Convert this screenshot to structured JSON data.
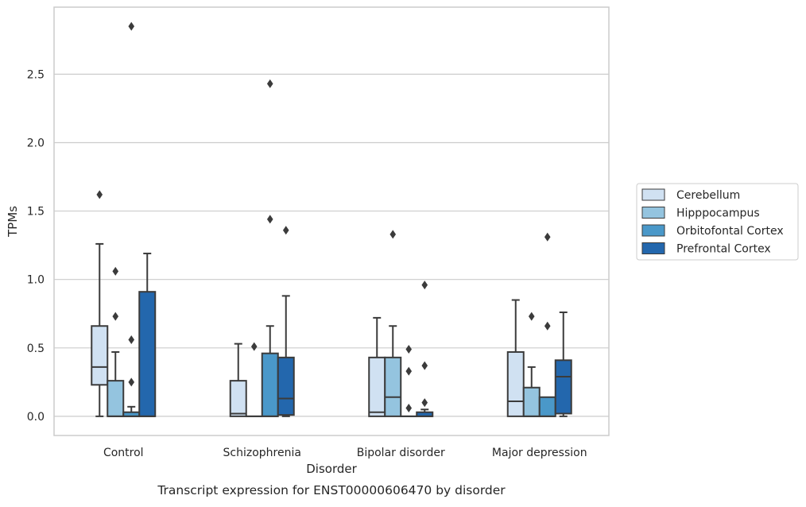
{
  "chart_data": {
    "type": "box",
    "title": "Transcript expression for ENST00000606470 by disorder",
    "xlabel": "Disorder",
    "ylabel": "TPMs",
    "ylim": [
      -0.14,
      2.99
    ],
    "yticks": [
      0.0,
      0.5,
      1.0,
      1.5,
      2.0,
      2.5
    ],
    "ytick_labels": [
      "0.0",
      "0.5",
      "1.0",
      "1.5",
      "2.0",
      "2.5"
    ],
    "categories": [
      "Control",
      "Schizophrenia",
      "Bipolar disorder",
      "Major depression"
    ],
    "grid": "y",
    "legend_position": "right",
    "series": [
      {
        "name": "Cerebellum",
        "color": "#d0e1f2",
        "boxes": [
          {
            "q1": 0.23,
            "median": 0.36,
            "q3": 0.66,
            "whisker_low": 0.0,
            "whisker_high": 1.26,
            "outliers": [
              1.62
            ]
          },
          {
            "q1": 0.0,
            "median": 0.02,
            "q3": 0.26,
            "whisker_low": 0.0,
            "whisker_high": 0.53,
            "outliers": []
          },
          {
            "q1": 0.0,
            "median": 0.03,
            "q3": 0.43,
            "whisker_low": 0.0,
            "whisker_high": 0.72,
            "outliers": []
          },
          {
            "q1": 0.0,
            "median": 0.11,
            "q3": 0.47,
            "whisker_low": 0.0,
            "whisker_high": 0.85,
            "outliers": []
          }
        ]
      },
      {
        "name": "Hipppocampus",
        "color": "#94c4df",
        "boxes": [
          {
            "q1": 0.0,
            "median": 0.0,
            "q3": 0.26,
            "whisker_low": 0.0,
            "whisker_high": 0.47,
            "outliers": [
              0.73,
              1.06
            ]
          },
          {
            "q1": 0.0,
            "median": 0.0,
            "q3": 0.0,
            "whisker_low": 0.0,
            "whisker_high": 0.0,
            "outliers": [
              0.51
            ]
          },
          {
            "q1": 0.0,
            "median": 0.14,
            "q3": 0.43,
            "whisker_low": 0.0,
            "whisker_high": 0.66,
            "outliers": [
              1.33
            ]
          },
          {
            "q1": 0.0,
            "median": 0.0,
            "q3": 0.21,
            "whisker_low": 0.0,
            "whisker_high": 0.36,
            "outliers": [
              0.73
            ]
          }
        ]
      },
      {
        "name": "Orbitofontal Cortex",
        "color": "#4a98c9",
        "boxes": [
          {
            "q1": 0.0,
            "median": 0.0,
            "q3": 0.03,
            "whisker_low": 0.0,
            "whisker_high": 0.07,
            "outliers": [
              0.25,
              0.56,
              2.85
            ]
          },
          {
            "q1": 0.0,
            "median": 0.0,
            "q3": 0.46,
            "whisker_low": 0.0,
            "whisker_high": 0.66,
            "outliers": [
              1.44,
              2.43
            ]
          },
          {
            "q1": 0.0,
            "median": 0.0,
            "q3": 0.0,
            "whisker_low": 0.0,
            "whisker_high": 0.0,
            "outliers": [
              0.06,
              0.33,
              0.49
            ]
          },
          {
            "q1": 0.0,
            "median": 0.0,
            "q3": 0.14,
            "whisker_low": 0.0,
            "whisker_high": 0.14,
            "outliers": [
              0.66,
              1.31
            ]
          }
        ]
      },
      {
        "name": "Prefrontal Cortex",
        "color": "#2367ad",
        "boxes": [
          {
            "q1": 0.0,
            "median": 0.0,
            "q3": 0.91,
            "whisker_low": 0.0,
            "whisker_high": 1.19,
            "outliers": []
          },
          {
            "q1": 0.01,
            "median": 0.13,
            "q3": 0.43,
            "whisker_low": 0.0,
            "whisker_high": 0.88,
            "outliers": [
              1.36
            ]
          },
          {
            "q1": 0.0,
            "median": 0.0,
            "q3": 0.03,
            "whisker_low": 0.0,
            "whisker_high": 0.05,
            "outliers": [
              0.1,
              0.37,
              0.96
            ]
          },
          {
            "q1": 0.02,
            "median": 0.29,
            "q3": 0.41,
            "whisker_low": 0.0,
            "whisker_high": 0.76,
            "outliers": []
          }
        ]
      }
    ]
  }
}
